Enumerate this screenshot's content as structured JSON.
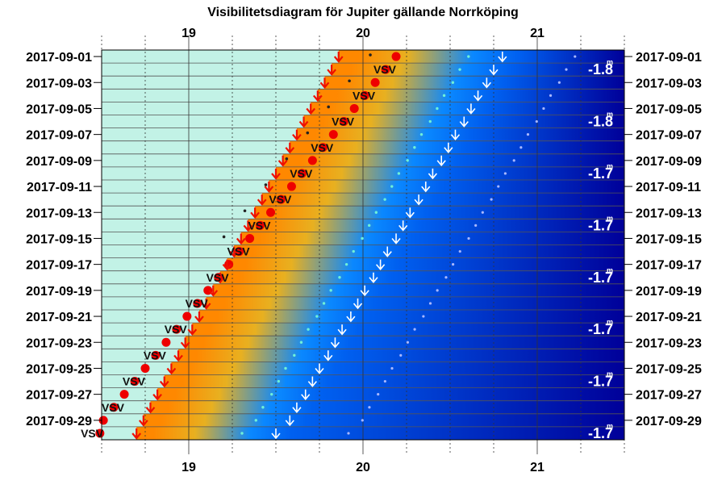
{
  "chart_data": {
    "type": "heatmap",
    "title": "Visibilitetsdiagram för Jupiter gällande Norrköping",
    "xlabel": "",
    "ylabel": "",
    "x_unit": "hour",
    "xlim": [
      18.5,
      21.5
    ],
    "x_ticks": [
      "19",
      "20",
      "21"
    ],
    "date_labels": [
      "2017-09-01",
      "2017-09-03",
      "2017-09-05",
      "2017-09-07",
      "2017-09-09",
      "2017-09-11",
      "2017-09-13",
      "2017-09-15",
      "2017-09-17",
      "2017-09-19",
      "2017-09-21",
      "2017-09-23",
      "2017-09-25",
      "2017-09-27",
      "2017-09-29"
    ],
    "dates": [
      "2017-09-01",
      "2017-09-02",
      "2017-09-03",
      "2017-09-04",
      "2017-09-05",
      "2017-09-06",
      "2017-09-07",
      "2017-09-08",
      "2017-09-09",
      "2017-09-10",
      "2017-09-11",
      "2017-09-12",
      "2017-09-13",
      "2017-09-14",
      "2017-09-15",
      "2017-09-16",
      "2017-09-17",
      "2017-09-18",
      "2017-09-19",
      "2017-09-20",
      "2017-09-21",
      "2017-09-22",
      "2017-09-23",
      "2017-09-24",
      "2017-09-25",
      "2017-09-26",
      "2017-09-27",
      "2017-09-28",
      "2017-09-29",
      "2017-09-30"
    ],
    "sunset": [
      19.86,
      19.82,
      19.78,
      19.74,
      19.7,
      19.66,
      19.62,
      19.58,
      19.54,
      19.5,
      19.46,
      19.42,
      19.38,
      19.34,
      19.3,
      19.26,
      19.22,
      19.18,
      19.14,
      19.1,
      19.06,
      19.02,
      18.98,
      18.94,
      18.9,
      18.86,
      18.82,
      18.78,
      18.74,
      18.7
    ],
    "civil_dusk_end": [
      20.8,
      20.75,
      20.71,
      20.66,
      20.62,
      20.58,
      20.53,
      20.49,
      20.45,
      20.4,
      20.36,
      20.32,
      20.27,
      20.23,
      20.19,
      20.14,
      20.1,
      20.06,
      20.01,
      19.97,
      19.93,
      19.88,
      19.84,
      19.8,
      19.75,
      19.71,
      19.67,
      19.62,
      19.58,
      19.5
    ],
    "jupiter_set": [
      20.19,
      20.13,
      20.07,
      20.01,
      19.95,
      19.89,
      19.83,
      19.77,
      19.71,
      19.65,
      19.59,
      19.53,
      19.47,
      19.41,
      19.35,
      19.29,
      19.23,
      19.17,
      19.11,
      19.05,
      18.99,
      18.93,
      18.87,
      18.81,
      18.75,
      18.69,
      18.63,
      18.57,
      18.51,
      18.49
    ],
    "direction_labels": [
      {
        "date": "2017-09-02",
        "x": 20.06,
        "text": "VSV"
      },
      {
        "date": "2017-09-04",
        "x": 19.94,
        "text": "VSV"
      },
      {
        "date": "2017-09-06",
        "x": 19.82,
        "text": "VSV"
      },
      {
        "date": "2017-09-08",
        "x": 19.7,
        "text": "VSV"
      },
      {
        "date": "2017-09-10",
        "x": 19.58,
        "text": "VSV"
      },
      {
        "date": "2017-09-12",
        "x": 19.46,
        "text": "VSV"
      },
      {
        "date": "2017-09-14",
        "x": 19.34,
        "text": "VSV"
      },
      {
        "date": "2017-09-16",
        "x": 19.22,
        "text": "VSV"
      },
      {
        "date": "2017-09-18",
        "x": 19.1,
        "text": "VSV"
      },
      {
        "date": "2017-09-20",
        "x": 18.98,
        "text": "VSV"
      },
      {
        "date": "2017-09-22",
        "x": 18.86,
        "text": "VSV"
      },
      {
        "date": "2017-09-24",
        "x": 18.74,
        "text": "VSV"
      },
      {
        "date": "2017-09-26",
        "x": 18.62,
        "text": "VSV"
      },
      {
        "date": "2017-09-28",
        "x": 18.5,
        "text": "VSV"
      },
      {
        "date": "2017-09-30",
        "x": 18.38,
        "text": "VSV"
      }
    ],
    "magnitude_labels": [
      {
        "date": "2017-09-02",
        "text": "-1.8"
      },
      {
        "date": "2017-09-06",
        "text": "-1.8"
      },
      {
        "date": "2017-09-10",
        "text": "-1.7"
      },
      {
        "date": "2017-09-14",
        "text": "-1.7"
      },
      {
        "date": "2017-09-18",
        "text": "-1.7"
      },
      {
        "date": "2017-09-22",
        "text": "-1.7"
      },
      {
        "date": "2017-09-26",
        "text": "-1.7"
      },
      {
        "date": "2017-09-30",
        "text": "-1.7"
      }
    ],
    "magnitude_unit": "m",
    "colors": {
      "daylight": "#c2f2e6",
      "sunset_arrow": "#ee1100",
      "jupiter": "#ee0000",
      "dusk_arrow": "#ffffff",
      "band_gold": "#e8b020",
      "band_orange": "#ff8800",
      "band_blue": "#0a88ff",
      "night": "#000099"
    }
  }
}
